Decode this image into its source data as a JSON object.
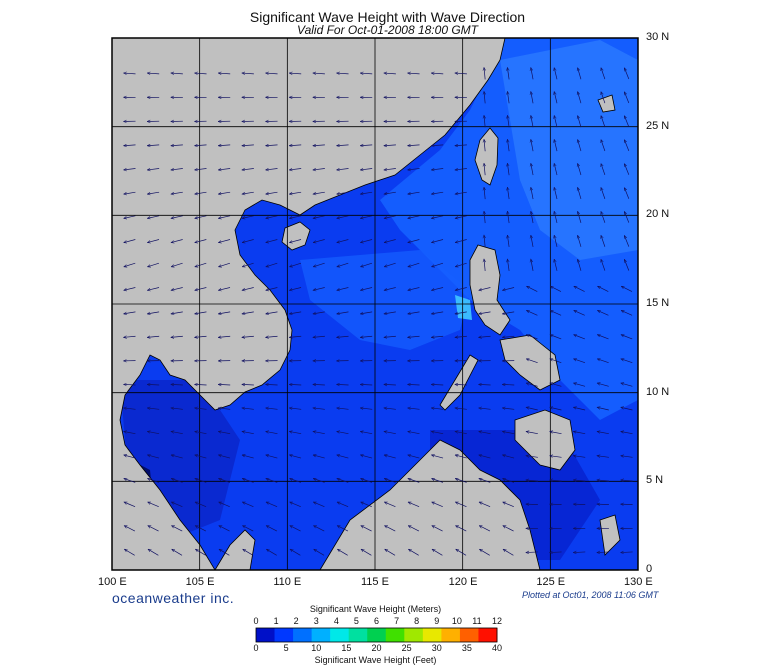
{
  "header": {
    "title": "Significant Wave Height with Wave Direction",
    "subtitle": "Valid For Oct-01-2008 18:00 GMT"
  },
  "map": {
    "lon_range": [
      100,
      130
    ],
    "lat_range": [
      0,
      30
    ],
    "lon_labels": [
      "100 E",
      "105 E",
      "110 E",
      "115 E",
      "120 E",
      "125 E",
      "130 E"
    ],
    "lat_labels": [
      "30 N",
      "25 N",
      "20 N",
      "15 N",
      "10 N",
      "5 N",
      "0"
    ],
    "land_color": "#c0c0c0",
    "grid": true
  },
  "footer": {
    "brand": "oceanweather inc.",
    "plotted": "Plotted at Oct01, 2008 11:06 GMT"
  },
  "colorbar": {
    "meters_title": "Significant Wave Height (Meters)",
    "meters_ticks": [
      "0",
      "1",
      "2",
      "3",
      "4",
      "5",
      "6",
      "7",
      "8",
      "9",
      "10",
      "11",
      "12"
    ],
    "feet_title": "Significant Wave Height (Feet)",
    "feet_ticks": [
      "0",
      "5",
      "10",
      "15",
      "20",
      "25",
      "30",
      "35",
      "40"
    ],
    "colors": [
      "#0010c8",
      "#0038ff",
      "#0070ff",
      "#00b0ff",
      "#00e8e8",
      "#00e0a0",
      "#00d050",
      "#40e000",
      "#a0e800",
      "#e8e800",
      "#ffb000",
      "#ff6000",
      "#ff1000"
    ]
  }
}
